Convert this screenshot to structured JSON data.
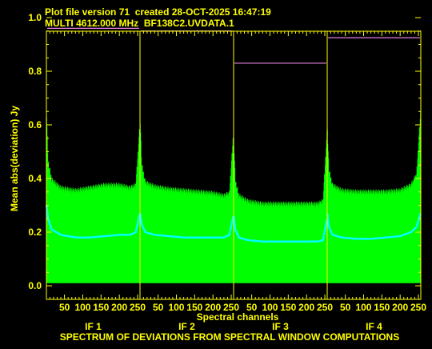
{
  "header": {
    "line1": "Plot file version 71  created 28-OCT-2025 16:47:19",
    "line2": "MULTI 4612.000 MHz  BF138C2.UVDATA.1"
  },
  "chart_data": {
    "type": "line",
    "title": "SPECTRUM OF DEVIATIONS FROM SPECTRAL WINDOW COMPUTATIONS",
    "xlabel": "Spectral channels",
    "ylabel": "Mean abs(deviation) Jy",
    "ylim": [
      0,
      1.0
    ],
    "yticks": [
      "0.0",
      "0.2",
      "0.4",
      "0.6",
      "0.8",
      "1.0"
    ],
    "xticks": [
      "50",
      "100",
      "150",
      "200",
      "250"
    ],
    "channels_per_if": 256,
    "grid": false,
    "colors": {
      "background": "#000000",
      "axes_text": "#ffff00",
      "deviation_band": "#00ff00",
      "mean_line": "#00ffff",
      "threshold_line": "#e080e0"
    },
    "panels": [
      {
        "label": "IF 1",
        "threshold": 0.96,
        "band_top": {
          "x": [
            1,
            5,
            15,
            40,
            80,
            120,
            160,
            200,
            230,
            245,
            256
          ],
          "y": [
            0.62,
            0.45,
            0.38,
            0.35,
            0.34,
            0.35,
            0.36,
            0.36,
            0.35,
            0.36,
            0.58
          ]
        },
        "mean": {
          "x": [
            1,
            5,
            15,
            40,
            80,
            120,
            160,
            200,
            230,
            245,
            256
          ],
          "y": [
            0.3,
            0.25,
            0.21,
            0.19,
            0.18,
            0.18,
            0.185,
            0.19,
            0.19,
            0.2,
            0.27
          ]
        },
        "band_bottom": 0.01
      },
      {
        "label": "IF 2",
        "threshold": 0.95,
        "band_top": {
          "x": [
            1,
            5,
            15,
            40,
            80,
            120,
            160,
            200,
            230,
            245,
            256
          ],
          "y": [
            0.6,
            0.44,
            0.37,
            0.355,
            0.345,
            0.34,
            0.335,
            0.33,
            0.32,
            0.33,
            0.55
          ]
        },
        "mean": {
          "x": [
            1,
            5,
            15,
            40,
            80,
            120,
            160,
            200,
            230,
            245,
            256
          ],
          "y": [
            0.27,
            0.23,
            0.2,
            0.19,
            0.185,
            0.18,
            0.18,
            0.18,
            0.18,
            0.19,
            0.26
          ]
        },
        "band_bottom": 0.01
      },
      {
        "label": "IF 3",
        "threshold": 0.83,
        "band_top": {
          "x": [
            1,
            5,
            15,
            40,
            80,
            120,
            160,
            200,
            230,
            245,
            256
          ],
          "y": [
            0.52,
            0.38,
            0.32,
            0.3,
            0.29,
            0.29,
            0.29,
            0.29,
            0.29,
            0.3,
            0.55
          ]
        },
        "mean": {
          "x": [
            1,
            5,
            15,
            40,
            80,
            120,
            160,
            200,
            230,
            245,
            256
          ],
          "y": [
            0.26,
            0.21,
            0.18,
            0.17,
            0.165,
            0.165,
            0.165,
            0.165,
            0.165,
            0.17,
            0.25
          ]
        },
        "band_bottom": 0.01
      },
      {
        "label": "IF 4",
        "threshold": 0.925,
        "band_top": {
          "x": [
            1,
            5,
            15,
            40,
            80,
            120,
            160,
            200,
            230,
            245,
            256
          ],
          "y": [
            0.56,
            0.42,
            0.36,
            0.34,
            0.335,
            0.335,
            0.335,
            0.34,
            0.36,
            0.4,
            0.63
          ]
        },
        "mean": {
          "x": [
            1,
            5,
            15,
            40,
            80,
            120,
            160,
            200,
            230,
            245,
            256
          ],
          "y": [
            0.27,
            0.22,
            0.19,
            0.18,
            0.175,
            0.175,
            0.18,
            0.185,
            0.2,
            0.22,
            0.27
          ]
        },
        "band_bottom": 0.01
      }
    ]
  }
}
